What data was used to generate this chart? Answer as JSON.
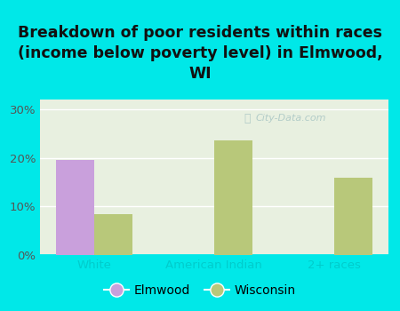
{
  "title": "Breakdown of poor residents within races\n(income below poverty level) in Elmwood,\nWI",
  "categories": [
    "White",
    "American Indian",
    "2+ races"
  ],
  "elmwood_values": [
    19.5,
    0,
    0
  ],
  "wisconsin_values": [
    8.5,
    23.5,
    16.0
  ],
  "elmwood_color": "#c9a0dc",
  "wisconsin_color": "#b8c87a",
  "background_color": "#00e8e8",
  "plot_bg_color": "#e8f0e0",
  "ylim": [
    0,
    32
  ],
  "yticks": [
    0,
    10,
    20,
    30
  ],
  "ytick_labels": [
    "0%",
    "10%",
    "20%",
    "30%"
  ],
  "bar_width": 0.32,
  "title_fontsize": 12.5,
  "tick_fontsize": 9.5,
  "legend_fontsize": 10,
  "watermark": "City-Data.com",
  "xtick_color": "#00cccc",
  "ytick_color": "#555555",
  "grid_color": "#ffffff",
  "title_color": "#111111"
}
